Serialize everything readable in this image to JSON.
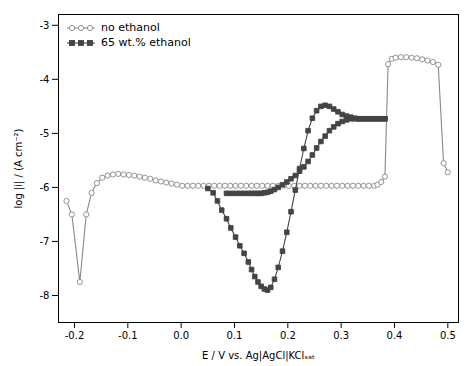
{
  "chart_data": {
    "type": "line",
    "xlabel": "E / V vs. Ag|AgCl|KClₛₐₜ",
    "ylabel": "log |i| / (A cm⁻²)",
    "xlim": [
      -0.23,
      0.52
    ],
    "ylim": [
      -8.5,
      -2.8
    ],
    "xticks": [
      -0.2,
      -0.1,
      {
        "value": 0,
        "label": "0.0"
      },
      0.1,
      0.2,
      0.3,
      0.4,
      0.5
    ],
    "yticks": [
      -8,
      -7,
      -6,
      -5,
      -4,
      -3
    ],
    "legend": "upper left",
    "series": [
      {
        "name": "no ethanol",
        "color": "#888888",
        "marker": "circle",
        "x": [
          -0.215,
          -0.205,
          -0.19,
          -0.178,
          -0.168,
          -0.158,
          -0.148,
          -0.138,
          -0.128,
          -0.118,
          -0.108,
          -0.098,
          -0.088,
          -0.078,
          -0.068,
          -0.058,
          -0.048,
          -0.038,
          -0.028,
          -0.018,
          -0.008,
          0.002,
          0.012,
          0.022,
          0.032,
          0.042,
          0.052,
          0.062,
          0.072,
          0.082,
          0.092,
          0.102,
          0.112,
          0.122,
          0.132,
          0.142,
          0.152,
          0.162,
          0.172,
          0.182,
          0.192,
          0.202,
          0.212,
          0.222,
          0.232,
          0.242,
          0.252,
          0.262,
          0.272,
          0.282,
          0.292,
          0.302,
          0.312,
          0.322,
          0.332,
          0.342,
          0.352,
          0.362,
          0.368,
          0.375,
          0.382,
          0.388,
          0.395,
          0.402,
          0.412,
          0.422,
          0.432,
          0.442,
          0.452,
          0.462,
          0.472,
          0.482,
          0.492,
          0.5
        ],
        "values": [
          -6.25,
          -6.5,
          -7.75,
          -6.5,
          -6.1,
          -5.92,
          -5.82,
          -5.78,
          -5.76,
          -5.75,
          -5.76,
          -5.77,
          -5.78,
          -5.8,
          -5.82,
          -5.84,
          -5.87,
          -5.89,
          -5.91,
          -5.93,
          -5.95,
          -5.97,
          -5.97,
          -5.97,
          -5.97,
          -5.97,
          -5.97,
          -5.97,
          -5.97,
          -5.97,
          -5.97,
          -5.97,
          -5.97,
          -5.97,
          -5.97,
          -5.97,
          -5.97,
          -5.97,
          -5.97,
          -5.97,
          -5.97,
          -5.97,
          -5.97,
          -5.97,
          -5.97,
          -5.97,
          -5.97,
          -5.97,
          -5.97,
          -5.97,
          -5.97,
          -5.97,
          -5.97,
          -5.97,
          -5.97,
          -5.97,
          -5.97,
          -5.97,
          -5.95,
          -5.9,
          -5.8,
          -3.72,
          -3.62,
          -3.6,
          -3.59,
          -3.59,
          -3.6,
          -3.61,
          -3.63,
          -3.65,
          -3.68,
          -3.73,
          -5.55,
          -5.72
        ]
      },
      {
        "name": "65 wt.% ethanol",
        "color": "#444444",
        "marker": "square",
        "x": [
          0.05,
          0.06,
          0.068,
          0.076,
          0.085,
          0.093,
          0.102,
          0.11,
          0.118,
          0.126,
          0.132,
          0.138,
          0.144,
          0.15,
          0.156,
          0.162,
          0.168,
          0.175,
          0.182,
          0.19,
          0.198,
          0.206,
          0.214,
          0.222,
          0.23,
          0.238,
          0.246,
          0.254,
          0.262,
          0.27,
          0.278,
          0.286,
          0.294,
          0.302,
          0.31,
          0.318,
          0.326,
          0.334,
          0.342,
          0.35,
          0.358,
          0.366,
          0.374,
          0.382,
          0.382,
          0.374,
          0.366,
          0.358,
          0.35,
          0.342,
          0.334,
          0.326,
          0.318,
          0.31,
          0.302,
          0.294,
          0.286,
          0.278,
          0.27,
          0.262,
          0.254,
          0.246,
          0.238,
          0.23,
          0.222,
          0.214,
          0.206,
          0.198,
          0.19,
          0.182,
          0.175,
          0.168,
          0.162,
          0.156,
          0.15,
          0.144,
          0.138,
          0.132,
          0.126,
          0.118,
          0.11,
          0.102,
          0.093,
          0.085
        ],
        "values": [
          -6.02,
          -6.1,
          -6.25,
          -6.42,
          -6.58,
          -6.75,
          -6.92,
          -7.08,
          -7.22,
          -7.38,
          -7.52,
          -7.65,
          -7.75,
          -7.83,
          -7.88,
          -7.9,
          -7.85,
          -7.7,
          -7.48,
          -7.18,
          -6.83,
          -6.45,
          -6.05,
          -5.65,
          -5.28,
          -4.95,
          -4.72,
          -4.58,
          -4.5,
          -4.48,
          -4.5,
          -4.55,
          -4.6,
          -4.65,
          -4.68,
          -4.7,
          -4.72,
          -4.73,
          -4.73,
          -4.73,
          -4.73,
          -4.73,
          -4.73,
          -4.73,
          -4.73,
          -4.73,
          -4.73,
          -4.73,
          -4.73,
          -4.73,
          -4.73,
          -4.73,
          -4.73,
          -4.75,
          -4.78,
          -4.82,
          -4.88,
          -4.95,
          -5.05,
          -5.15,
          -5.27,
          -5.4,
          -5.52,
          -5.62,
          -5.7,
          -5.78,
          -5.84,
          -5.9,
          -5.95,
          -6.0,
          -6.04,
          -6.07,
          -6.09,
          -6.1,
          -6.11,
          -6.11,
          -6.11,
          -6.11,
          -6.11,
          -6.11,
          -6.11,
          -6.11,
          -6.11,
          -6.11
        ]
      }
    ]
  }
}
